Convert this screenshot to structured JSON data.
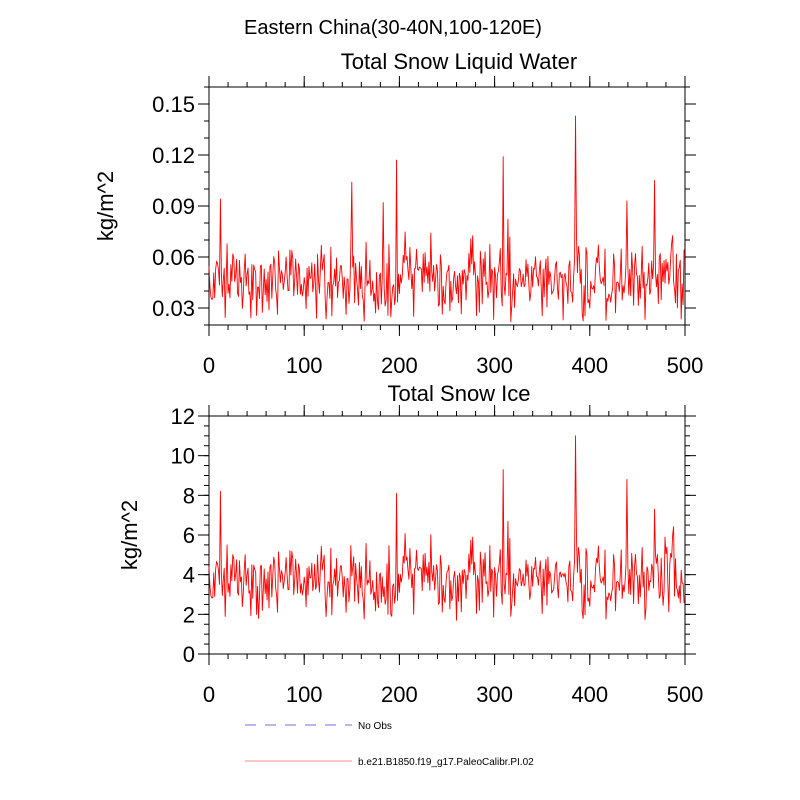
{
  "figure": {
    "suptitle": "Eastern China(30-40N,100-120E)"
  },
  "colors": {
    "series": "#ff0000",
    "no_obs": "#8c8ce6",
    "legend_series": "#ffa0a0",
    "axis": "#000000"
  },
  "chart_data": [
    {
      "type": "line",
      "title": "Total Snow Liquid Water",
      "xlabel": "",
      "ylabel": "kg/m^2",
      "xlim": [
        0,
        500
      ],
      "ylim": [
        0.02,
        0.16
      ],
      "xticks": [
        0,
        100,
        200,
        300,
        400,
        500
      ],
      "xtick_labels": [
        "0",
        "100",
        "200",
        "300",
        "400",
        "500"
      ],
      "yticks": [
        0.03,
        0.06,
        0.09,
        0.12,
        0.15
      ],
      "ytick_labels": [
        "0.03",
        "0.06",
        "0.09",
        "0.12",
        "0.15"
      ],
      "y_minor_step": 0.01,
      "x_minor_step": 20,
      "grid": false,
      "series": [
        {
          "name": "b.e21.B1850.f19_g17.PaleoCalibr.PI.02",
          "n_points": 500,
          "base": 0.047,
          "amplitude": 0.011,
          "floor": 0.022,
          "peaks": [
            [
              12,
              0.094
            ],
            [
              150,
              0.104
            ],
            [
              183,
              0.092
            ],
            [
              197,
              0.117
            ],
            [
              309,
              0.119
            ],
            [
              385,
              0.143
            ],
            [
              439,
              0.093
            ],
            [
              468,
              0.105
            ]
          ],
          "lows": [
            [
              113,
              0.024
            ],
            [
              317,
              0.022
            ],
            [
              372,
              0.023
            ]
          ]
        }
      ]
    },
    {
      "type": "line",
      "title": "Total Snow Ice",
      "xlabel": "",
      "ylabel": "kg/m^2",
      "xlim": [
        0,
        500
      ],
      "ylim": [
        0,
        12
      ],
      "xticks": [
        0,
        100,
        200,
        300,
        400,
        500
      ],
      "xtick_labels": [
        "0",
        "100",
        "200",
        "300",
        "400",
        "500"
      ],
      "yticks": [
        0,
        2,
        4,
        6,
        8,
        10,
        12
      ],
      "ytick_labels": [
        "0",
        "2",
        "4",
        "6",
        "8",
        "10",
        "12"
      ],
      "y_minor_step": 0.5,
      "x_minor_step": 20,
      "grid": false,
      "series": [
        {
          "name": "b.e21.B1850.f19_g17.PaleoCalibr.PI.02",
          "n_points": 500,
          "base": 3.8,
          "amplitude": 0.9,
          "floor": 1.7,
          "peaks": [
            [
              12,
              8.2
            ],
            [
              197,
              8.1
            ],
            [
              309,
              9.3
            ],
            [
              385,
              11.0
            ],
            [
              439,
              8.8
            ],
            [
              468,
              7.3
            ]
          ],
          "lows": [
            [
              52,
              1.8
            ],
            [
              192,
              1.9
            ],
            [
              260,
              1.7
            ],
            [
              317,
              1.9
            ]
          ]
        }
      ]
    }
  ],
  "legend": {
    "position": "bottom-left",
    "items": [
      {
        "label": "No Obs",
        "style": "dashed"
      },
      {
        "label": "b.e21.B1850.f19_g17.PaleoCalibr.PI.02",
        "style": "solid"
      }
    ]
  }
}
